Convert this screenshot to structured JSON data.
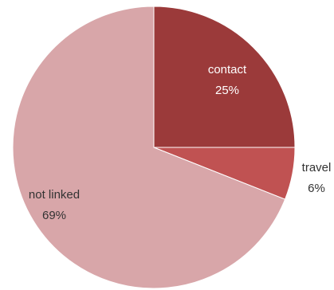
{
  "chart_data": {
    "type": "pie",
    "title": "",
    "slices": [
      {
        "label": "contact",
        "value": 25,
        "value_text": "25%",
        "color": "#9b3a3a",
        "label_color": "#ffffff"
      },
      {
        "label": "travel",
        "value": 6,
        "value_text": "6%",
        "color": "#c05252",
        "label_color": "#333333"
      },
      {
        "label": "not linked",
        "value": 69,
        "value_text": "69%",
        "color": "#d8a6a9",
        "label_color": "#333333"
      }
    ],
    "start_angle_deg": 0,
    "direction": "clockwise",
    "legend": "none"
  }
}
